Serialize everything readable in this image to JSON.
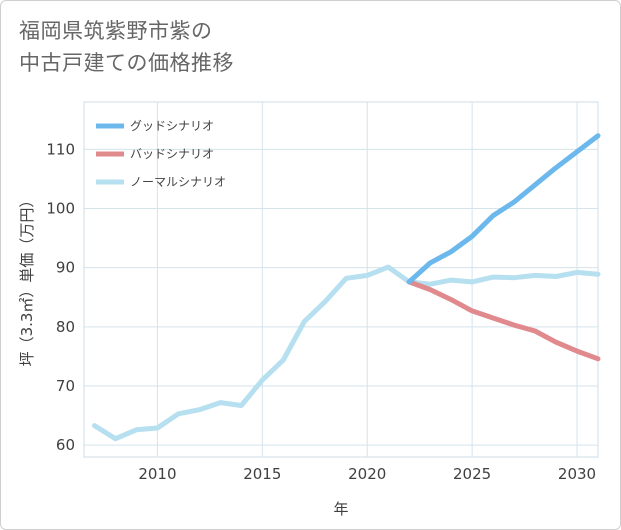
{
  "title": {
    "line1": "福岡県筑紫野市紫の",
    "line2": "中古戸建ての価格推移"
  },
  "chart_data": {
    "type": "line",
    "title": "福岡県筑紫野市紫の中古戸建ての価格推移",
    "xlabel": "年",
    "ylabel": "坪（3.3㎡）単価（万円）",
    "xlim": [
      2006.5,
      2031
    ],
    "ylim": [
      58,
      118
    ],
    "xticks": [
      2010,
      2015,
      2020,
      2025,
      2030
    ],
    "yticks": [
      60,
      70,
      80,
      90,
      100,
      110
    ],
    "grid": true,
    "legend_position": "top-left",
    "series": [
      {
        "name": "グッドシナリオ",
        "color": "#6cb8ec",
        "x": [
          2022,
          2023,
          2024,
          2025,
          2026,
          2027,
          2028,
          2029,
          2030,
          2031
        ],
        "values": [
          87.6,
          90.8,
          92.7,
          95.3,
          98.8,
          101.1,
          104.0,
          106.9,
          109.6,
          112.3
        ]
      },
      {
        "name": "バッドシナリオ",
        "color": "#e08a8e",
        "x": [
          2022,
          2023,
          2024,
          2025,
          2026,
          2027,
          2028,
          2029,
          2030,
          2031
        ],
        "values": [
          87.6,
          86.3,
          84.6,
          82.7,
          81.5,
          80.3,
          79.3,
          77.4,
          75.9,
          74.6
        ]
      },
      {
        "name": "ノーマルシナリオ",
        "color": "#b6dff0",
        "x": [
          2007,
          2008,
          2009,
          2010,
          2011,
          2012,
          2013,
          2014,
          2015,
          2016,
          2017,
          2018,
          2019,
          2020,
          2021,
          2022,
          2023,
          2024,
          2025,
          2026,
          2027,
          2028,
          2029,
          2030,
          2031
        ],
        "values": [
          63.3,
          61.1,
          62.6,
          62.9,
          65.3,
          66.0,
          67.2,
          66.7,
          71.0,
          74.4,
          80.9,
          84.3,
          88.2,
          88.7,
          90.1,
          87.6,
          87.2,
          87.9,
          87.6,
          88.4,
          88.3,
          88.7,
          88.5,
          89.2,
          88.9
        ]
      }
    ]
  }
}
